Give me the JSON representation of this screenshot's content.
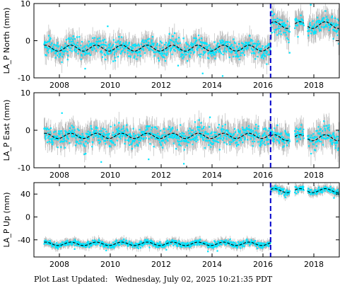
{
  "footer": {
    "label": "Plot Last Updated:",
    "value": "Wednesday, July 02, 2025 10:21:35 PDT"
  },
  "colors": {
    "error_bars": "#aaaaaa",
    "points": "#00e5ff",
    "trend": "#000000",
    "event_line": "#0000cc"
  },
  "chart_data": [
    {
      "type": "scatter",
      "ylabel": "LA_P North (mm)",
      "xlim": [
        2007.0,
        2019.0
      ],
      "ylim": [
        -10,
        10
      ],
      "yticks": [
        -10,
        0,
        10
      ],
      "xticks": [
        2008,
        2010,
        2012,
        2014,
        2016,
        2018
      ],
      "show_x_tick_labels": true,
      "grid": false,
      "data_start": 2007.4,
      "data_end": 2019.0,
      "gaps": [
        [
          2017.05,
          2017.25
        ],
        [
          2017.6,
          2017.75
        ]
      ],
      "event_line_x": 2016.3,
      "segments": [
        {
          "from": 2007.4,
          "to": 2016.3,
          "mean": -2.0,
          "seasonal_amplitude": 0.8,
          "scatter": 2.2,
          "error": 2.3
        },
        {
          "from": 2016.3,
          "to": 2019.0,
          "mean": 4.2,
          "seasonal_amplitude": 0.9,
          "scatter": 2.4,
          "error": 2.6
        }
      ]
    },
    {
      "type": "scatter",
      "ylabel": "LA_P East (mm)",
      "xlim": [
        2007.0,
        2019.0
      ],
      "ylim": [
        -10,
        10
      ],
      "yticks": [
        -10,
        0,
        10
      ],
      "xticks": [
        2008,
        2010,
        2012,
        2014,
        2016,
        2018
      ],
      "show_x_tick_labels": true,
      "grid": false,
      "data_start": 2007.4,
      "data_end": 2019.0,
      "gaps": [
        [
          2017.05,
          2017.25
        ],
        [
          2017.6,
          2017.75
        ]
      ],
      "event_line_x": 2016.3,
      "segments": [
        {
          "from": 2007.4,
          "to": 2016.3,
          "mean": -1.5,
          "seasonal_amplitude": 0.7,
          "scatter": 2.3,
          "error": 2.4
        },
        {
          "from": 2016.3,
          "to": 2019.0,
          "mean": -2.0,
          "seasonal_amplitude": 0.8,
          "scatter": 2.3,
          "error": 2.5
        }
      ]
    },
    {
      "type": "scatter",
      "ylabel": "LA_P Up (mm)",
      "xlim": [
        2007.0,
        2019.0
      ],
      "ylim": [
        -70,
        60
      ],
      "yticks": [
        -40,
        0,
        40
      ],
      "xticks": [
        2008,
        2010,
        2012,
        2014,
        2016,
        2018
      ],
      "show_x_tick_labels": true,
      "grid": false,
      "data_start": 2007.4,
      "data_end": 2019.0,
      "gaps": [
        [
          2017.05,
          2017.25
        ],
        [
          2017.6,
          2017.75
        ]
      ],
      "event_line_x": 2016.3,
      "segments": [
        {
          "from": 2007.4,
          "to": 2016.3,
          "mean": -47.0,
          "seasonal_amplitude": 3.0,
          "scatter": 4.5,
          "error": 6.0
        },
        {
          "from": 2016.3,
          "to": 2019.0,
          "mean": 46.0,
          "seasonal_amplitude": 3.5,
          "scatter": 4.5,
          "error": 6.5
        }
      ]
    }
  ]
}
